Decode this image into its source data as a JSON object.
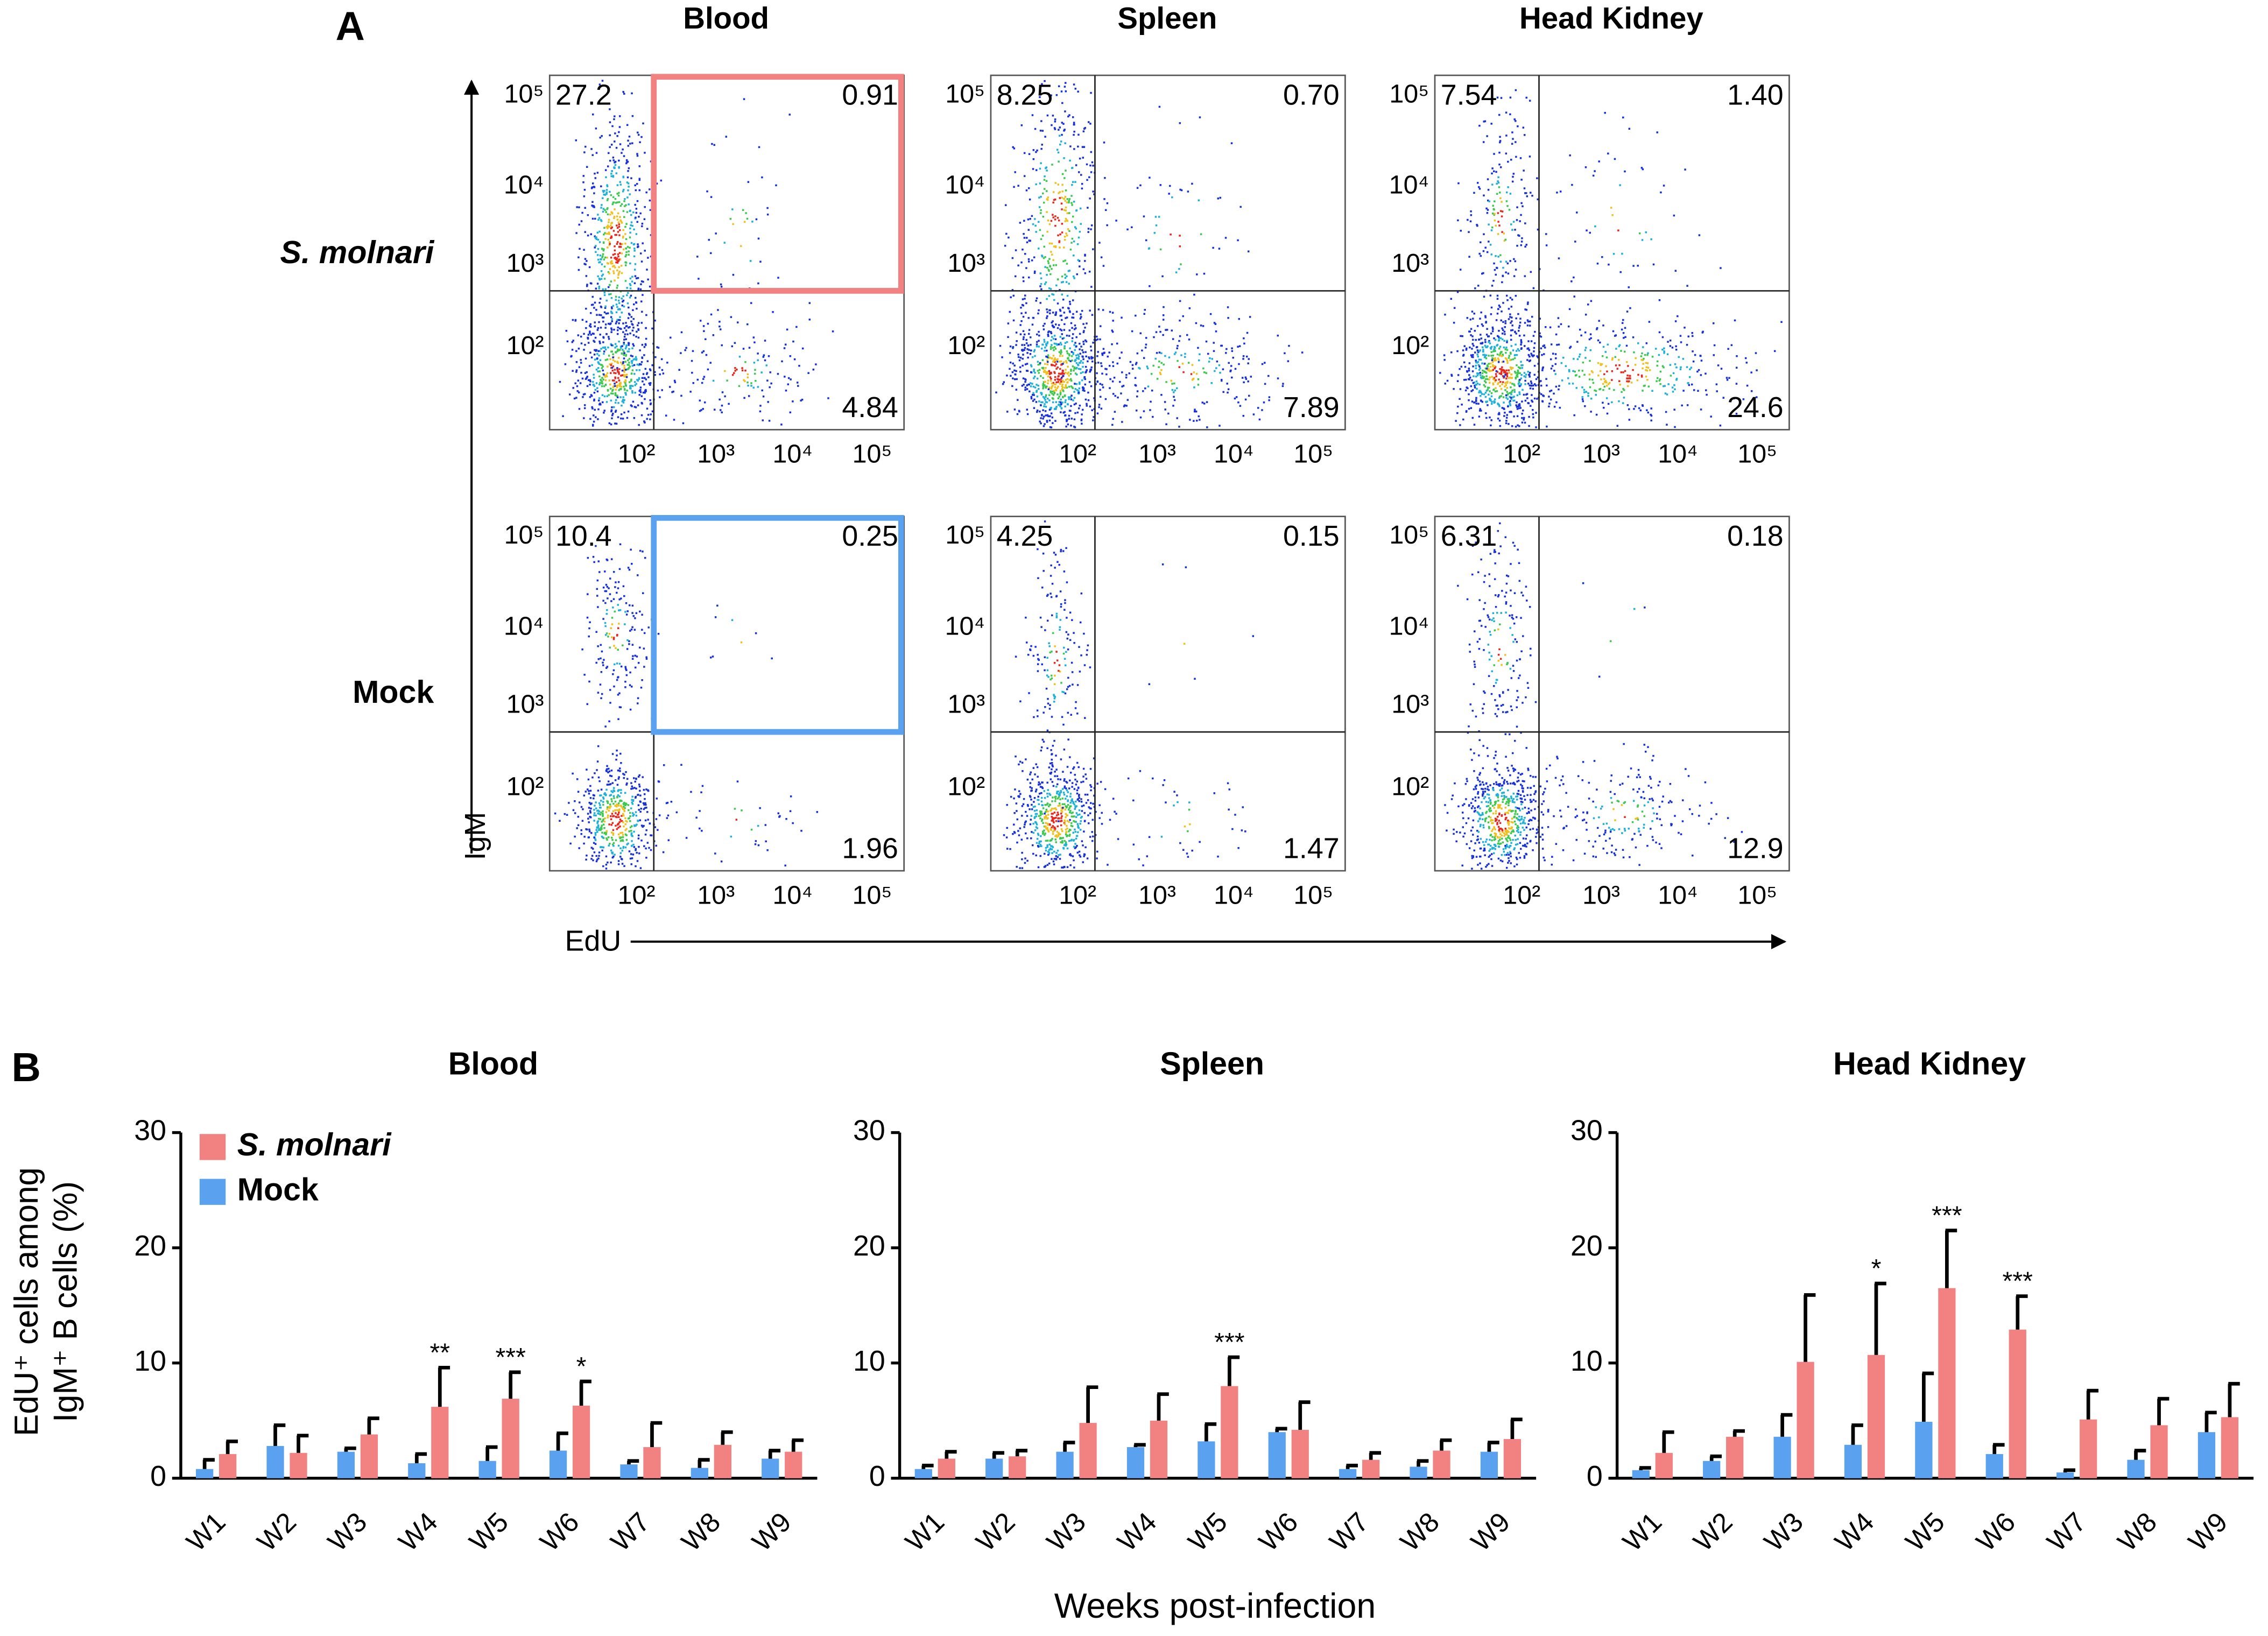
{
  "panel_a": {
    "label": "A",
    "columns": [
      "Blood",
      "Spleen",
      "Head Kidney"
    ],
    "rows": [
      {
        "label": "S. molnari",
        "gate_color": "#f28282",
        "quadrants": [
          {
            "upper_left": "27.2",
            "upper_right": "0.91",
            "lower_right": "4.84"
          },
          {
            "upper_left": "8.25",
            "upper_right": "0.70",
            "lower_right": "7.89"
          },
          {
            "upper_left": "7.54",
            "upper_right": "1.40",
            "lower_right": "24.6"
          }
        ]
      },
      {
        "label": "Mock",
        "gate_color": "#5aa2f0",
        "quadrants": [
          {
            "upper_left": "10.4",
            "upper_right": "0.25",
            "lower_right": "1.96"
          },
          {
            "upper_left": "4.25",
            "upper_right": "0.15",
            "lower_right": "1.47"
          },
          {
            "upper_left": "6.31",
            "upper_right": "0.18",
            "lower_right": "12.9"
          }
        ]
      }
    ],
    "x_ticks": [
      "10²",
      "10³",
      "10⁴",
      "10⁵"
    ],
    "y_ticks": [
      "10⁵",
      "10⁴",
      "10³",
      "10²"
    ],
    "x_label": "EdU",
    "y_label": "IgM"
  },
  "panel_b_label": "B",
  "xlabel": "Weeks post-infection",
  "chart_data": [
    {
      "type": "bar",
      "title": "Blood",
      "ylabel": [
        "EdU⁺ cells among",
        "IgM⁺ B cells (%)"
      ],
      "legend": "top-left",
      "categories": [
        "W1",
        "W2",
        "W3",
        "W4",
        "W5",
        "W6",
        "W7",
        "W8",
        "W9"
      ],
      "ylim": [
        0,
        30
      ],
      "yticks": [
        0,
        10,
        20,
        30
      ],
      "series": [
        {
          "name": "Mock",
          "color": "#5aa2f0",
          "values": [
            0.8,
            2.8,
            2.3,
            1.3,
            1.5,
            2.4,
            1.2,
            0.9,
            1.7
          ],
          "errors": [
            0.8,
            1.8,
            0.3,
            0.8,
            1.2,
            1.5,
            0.3,
            0.7,
            0.7
          ]
        },
        {
          "name": "S. molnari",
          "color": "#f28282",
          "values": [
            2.1,
            2.2,
            3.8,
            6.2,
            6.9,
            6.3,
            2.7,
            2.9,
            2.3
          ],
          "errors": [
            1.1,
            1.5,
            1.4,
            3.4,
            2.3,
            2.1,
            2.1,
            1.1,
            1.0
          ]
        }
      ],
      "significance": [
        null,
        null,
        null,
        "**",
        "***",
        "*",
        null,
        null,
        null
      ]
    },
    {
      "type": "bar",
      "title": "Spleen",
      "categories": [
        "W1",
        "W2",
        "W3",
        "W4",
        "W5",
        "W6",
        "W7",
        "W8",
        "W9"
      ],
      "ylim": [
        0,
        30
      ],
      "yticks": [
        0,
        10,
        20,
        30
      ],
      "series": [
        {
          "color": "#5aa2f0",
          "values": [
            0.8,
            1.7,
            2.3,
            2.7,
            3.2,
            4.0,
            0.8,
            1.0,
            2.3
          ],
          "errors": [
            0.3,
            0.5,
            0.8,
            0.2,
            1.5,
            0.3,
            0.3,
            0.5,
            0.8
          ]
        },
        {
          "color": "#f28282",
          "values": [
            1.7,
            1.9,
            4.8,
            5.0,
            8.0,
            4.2,
            1.6,
            2.4,
            3.4
          ],
          "errors": [
            0.6,
            0.5,
            3.1,
            2.3,
            2.5,
            2.4,
            0.6,
            0.9,
            1.7
          ]
        }
      ],
      "significance": [
        null,
        null,
        null,
        null,
        "***",
        null,
        null,
        null,
        null
      ]
    },
    {
      "type": "bar",
      "title": "Head Kidney",
      "categories": [
        "W1",
        "W2",
        "W3",
        "W4",
        "W5",
        "W6",
        "W7",
        "W8",
        "W9"
      ],
      "ylim": [
        0,
        30
      ],
      "yticks": [
        0,
        10,
        20,
        30
      ],
      "series": [
        {
          "color": "#5aa2f0",
          "values": [
            0.7,
            1.5,
            3.6,
            2.9,
            4.9,
            2.1,
            0.5,
            1.6,
            4.0
          ],
          "errors": [
            0.2,
            0.4,
            1.9,
            1.7,
            4.2,
            0.8,
            0.2,
            0.8,
            1.7
          ]
        },
        {
          "color": "#f28282",
          "values": [
            2.2,
            3.6,
            10.1,
            10.7,
            16.5,
            12.9,
            5.1,
            4.6,
            5.3
          ],
          "errors": [
            1.8,
            0.5,
            5.8,
            6.2,
            5.0,
            2.9,
            2.5,
            2.3,
            2.9
          ]
        }
      ],
      "significance": [
        null,
        null,
        null,
        "*",
        "***",
        "***",
        null,
        null,
        null
      ]
    }
  ]
}
